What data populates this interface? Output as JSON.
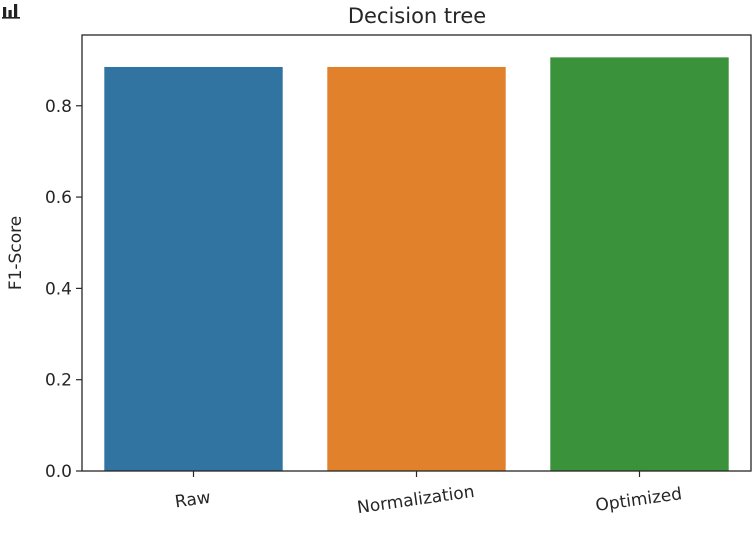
{
  "chart_data": {
    "type": "bar",
    "title": "Decision tree",
    "xlabel": "",
    "ylabel": "F1-Score",
    "categories": [
      "Raw",
      "Normalization",
      "Optimized"
    ],
    "values": [
      0.885,
      0.885,
      0.906
    ],
    "ylim": [
      0,
      0.955
    ],
    "yticks": [
      0.0,
      0.2,
      0.4,
      0.6,
      0.8
    ],
    "ytick_labels": [
      "0.0",
      "0.2",
      "0.4",
      "0.6",
      "0.8"
    ],
    "grid": false,
    "colors": [
      "#3274a1",
      "#e1812c",
      "#3a923a"
    ],
    "xtick_rotation_deg": -8
  },
  "toolbar": {
    "icon": "bar-chart-icon"
  }
}
